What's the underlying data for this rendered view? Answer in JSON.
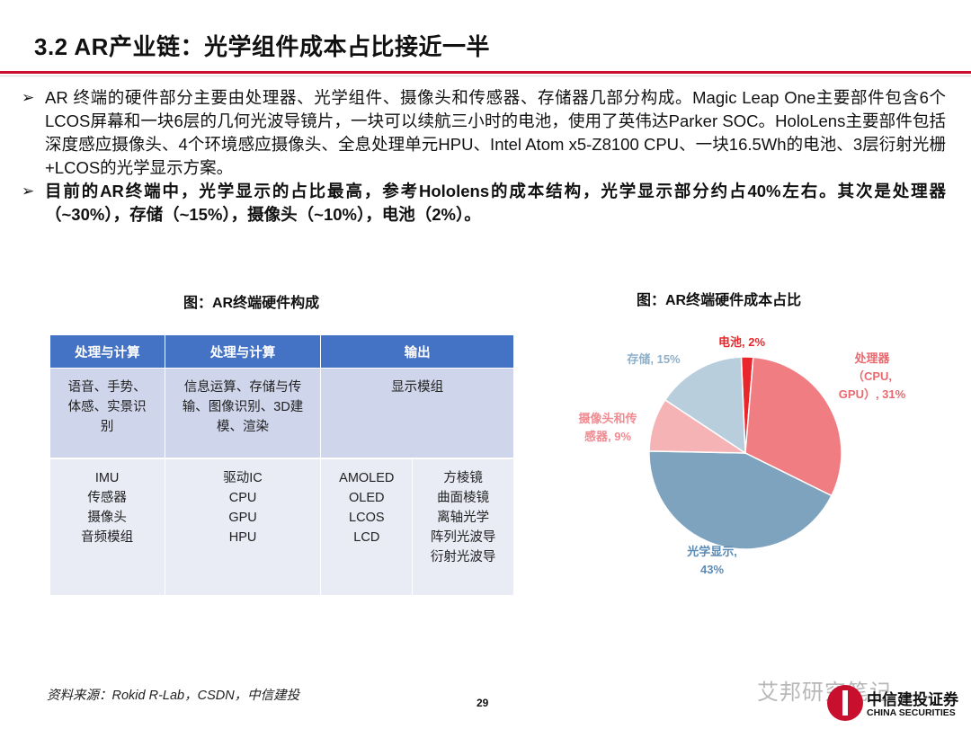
{
  "title": "3.2 AR产业链：光学组件成本占比接近一半",
  "bullets": [
    "AR 终端的硬件部分主要由处理器、光学组件、摄像头和传感器、存储器几部分构成。Magic Leap One主要部件包含6个LCOS屏幕和一块6层的几何光波导镜片，一块可以续航三小时的电池，使用了英伟达Parker SOC。HoloLens主要部件包括深度感应摄像头、4个环境感应摄像头、全息处理单元HPU、Intel Atom x5-Z8100 CPU、一块16.5Wh的电池、3层衍射光栅+LCOS的光学显示方案。",
    "目前的AR终端中，光学显示的占比最高，参考Hololens的成本结构，光学显示部分约占40%左右。其次是处理器（~30%），存储（~15%），摄像头（~10%），电池（2%）。"
  ],
  "bullet_marker": "➢",
  "figure_left_title": "图：AR终端硬件构成",
  "figure_right_title": "图：AR终端硬件成本占比",
  "table": {
    "headers": [
      "处理与计算",
      "处理与计算",
      "输出"
    ],
    "row1": {
      "col1": [
        "语音、手势、",
        "体感、实景识",
        "别"
      ],
      "col2": [
        "信息运算、存储与传",
        "输、图像识别、3D建",
        "模、渲染"
      ],
      "col3": [
        "显示模组"
      ]
    },
    "row2": {
      "col1": [
        "IMU",
        "传感器",
        "摄像头",
        "音频模组"
      ],
      "col2": [
        "驱动IC",
        "CPU",
        "GPU",
        "HPU"
      ],
      "col3a": [
        "AMOLED",
        "OLED",
        "LCOS",
        "LCD"
      ],
      "col3b": [
        "方棱镜",
        "曲面棱镜",
        "离轴光学",
        "阵列光波导",
        "衍射光波导"
      ]
    }
  },
  "chart_data": {
    "type": "pie",
    "title": "图：AR终端硬件成本占比",
    "slices": [
      {
        "name": "电池",
        "value": 2,
        "label_lines": [
          "电池, 2%"
        ],
        "color": "#e8262b",
        "label_color": "#e8262b"
      },
      {
        "name": "处理器",
        "value": 31,
        "label_lines": [
          "处理器",
          "（CPU,",
          "GPU）, 31%"
        ],
        "color": "#f07d82",
        "label_color": "#e86a70"
      },
      {
        "name": "光学显示",
        "value": 43,
        "label_lines": [
          "光学显示,",
          "43%"
        ],
        "color": "#7ea3bf",
        "label_color": "#5b8bb5"
      },
      {
        "name": "摄像头和传感器",
        "value": 9,
        "label_lines": [
          "摄像头和传",
          "感器, 9%"
        ],
        "color": "#f6b3b6",
        "label_color": "#f08b92"
      },
      {
        "name": "存储",
        "value": 15,
        "label_lines": [
          "存储, 15%"
        ],
        "color": "#b8cedd",
        "label_color": "#8fb0c8"
      }
    ]
  },
  "source": "资料来源：Rokid R-Lab，CSDN，中信建投",
  "page_number": "29",
  "watermark": "艾邦研究笔记",
  "logo": {
    "cn": "中信建投证券",
    "en": "CHINA SECURITIES"
  }
}
